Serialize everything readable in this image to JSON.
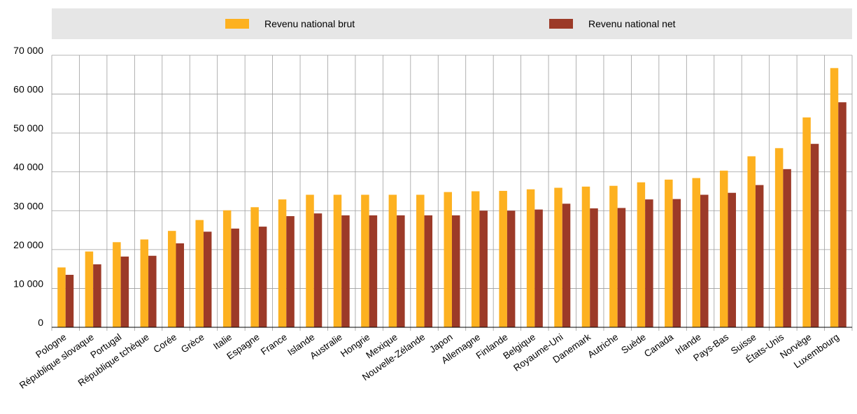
{
  "legend": {
    "gross_label": "Revenu national brut",
    "net_label": "Revenu national net"
  },
  "colors": {
    "gross": "#fdb120",
    "net": "#9c3a28",
    "grid": "#9e9e9e",
    "legend_bg": "#e6e6e6"
  },
  "chart_data": {
    "type": "bar",
    "categories": [
      "Pologne",
      "République slovaque",
      "Portugal",
      "République tchèque",
      "Corée",
      "Grèce",
      "Italie",
      "Espagne",
      "France",
      "Islande",
      "Australie",
      "Hongrie",
      "Mexique",
      "Nouvelle-Zélande",
      "Japon",
      "Allemagne",
      "Finlande",
      "Belgique",
      "Royaume-Uni",
      "Danemark",
      "Autriche",
      "Suède",
      "Canada",
      "Irlande",
      "Pays-Bas",
      "Suisse",
      "États-Unis",
      "Norvège",
      "Luxembourg"
    ],
    "series": [
      {
        "name": "Revenu national brut",
        "values": [
          15400,
          19500,
          21900,
          22600,
          24800,
          27600,
          30100,
          30900,
          32900,
          34100,
          34100,
          34100,
          34100,
          34100,
          34800,
          35000,
          35100,
          35500,
          35900,
          36200,
          36400,
          37300,
          38000,
          38400,
          40300,
          44000,
          46100,
          54000,
          66700
        ]
      },
      {
        "name": "Revenu national net",
        "values": [
          13500,
          16200,
          18200,
          18400,
          21600,
          24600,
          25400,
          25900,
          28600,
          29300,
          28800,
          28800,
          28800,
          28800,
          28800,
          30000,
          30000,
          30300,
          31800,
          30600,
          30700,
          32900,
          33000,
          34100,
          34600,
          36600,
          40700,
          47200,
          57900
        ]
      }
    ],
    "y_ticks": [
      "0",
      "10 000",
      "20 000",
      "30 000",
      "40 000",
      "50 000",
      "60 000",
      "70 000"
    ],
    "ylim": [
      0,
      70000
    ],
    "grid": true,
    "legend_position": "top"
  }
}
